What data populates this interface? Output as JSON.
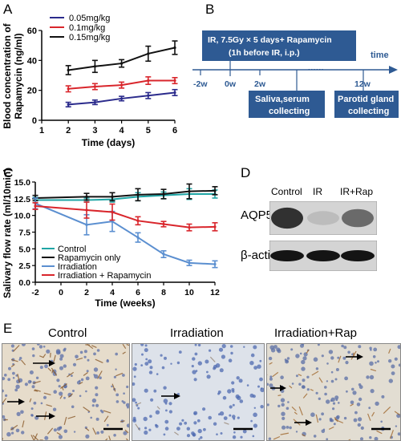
{
  "panels": {
    "A": "A",
    "B": "B",
    "C": "C",
    "D": "D",
    "E": "E"
  },
  "panelA": {
    "chart_data": {
      "type": "line",
      "xlabel": "Time (days)",
      "ylabel_line1": "Blood concentration of",
      "ylabel_line2": "Rapamycin (ng/ml)",
      "xlim": [
        1,
        6
      ],
      "ylim": [
        0,
        60
      ],
      "xticks": [
        "1",
        "2",
        "3",
        "4",
        "5",
        "6"
      ],
      "yticks": [
        "0",
        "20",
        "40",
        "60"
      ],
      "legend_position": "top-left",
      "series": [
        {
          "name": "0.05mg/kg",
          "color": "#2b2b8c",
          "x": [
            2,
            3,
            4,
            5,
            6
          ],
          "values": [
            10.5,
            12,
            14.5,
            16.5,
            18.5
          ],
          "err": [
            1.5,
            1.5,
            1.5,
            2,
            2
          ]
        },
        {
          "name": "0.1mg/kg",
          "color": "#d9262c",
          "x": [
            2,
            3,
            4,
            5,
            6
          ],
          "values": [
            21,
            22.5,
            23.5,
            26.5,
            26.5
          ],
          "err": [
            2,
            2,
            2,
            2.5,
            2
          ]
        },
        {
          "name": "0.15mg/kg",
          "color": "#111111",
          "x": [
            2,
            3,
            4,
            5,
            6
          ],
          "values": [
            33.5,
            36,
            38,
            44.5,
            48.5
          ],
          "err": [
            3,
            4,
            2.5,
            5,
            4.5
          ]
        }
      ]
    }
  },
  "panelB": {
    "top_box_line1": "IR, 7.5Gy × 5 days+ Rapamycin",
    "top_box_line2": "(1h before IR, i.p.)",
    "axis_label": "time",
    "ticks": [
      "-2w",
      "0w",
      "2w",
      "12w"
    ],
    "dots": "······",
    "box_saliva_line1": "Saliva,serum",
    "box_saliva_line2": "collecting",
    "box_parotid_line1": "Parotid gland",
    "box_parotid_line2": "collecting",
    "box_color": "#2e5a93"
  },
  "panelC": {
    "chart_data": {
      "type": "line",
      "xlabel": "Time (weeks)",
      "ylabel": "Salivary flow rate (ml/10min)",
      "xlim": [
        -2,
        12
      ],
      "ylim": [
        0,
        15
      ],
      "xticks": [
        "-2",
        "0",
        "2",
        "4",
        "6",
        "8",
        "10",
        "12"
      ],
      "yticks": [
        "0.0",
        "2.5",
        "5.0",
        "7.5",
        "10.0",
        "12.5",
        "15.0"
      ],
      "legend_position": "bottom-left",
      "series": [
        {
          "name": "Control",
          "color": "#1fa5a5",
          "x": [
            -2,
            2,
            4,
            6,
            8,
            10,
            12
          ],
          "values": [
            12.3,
            12.3,
            12.4,
            12.8,
            13.0,
            13.2,
            13.2
          ],
          "err": [
            0.4,
            0.3,
            0.4,
            0.6,
            0.5,
            0.8,
            0.6
          ]
        },
        {
          "name": "Rapamycin only",
          "color": "#111111",
          "x": [
            -2,
            2,
            4,
            6,
            8,
            10,
            12
          ],
          "values": [
            12.6,
            12.8,
            12.8,
            13.1,
            13.2,
            13.6,
            13.7
          ],
          "err": [
            0.4,
            0.5,
            0.6,
            0.9,
            0.7,
            1.1,
            0.6
          ]
        },
        {
          "name": "Irradiation",
          "color": "#5b8fd0",
          "x": [
            -2,
            2,
            4,
            6,
            8,
            10,
            12
          ],
          "values": [
            11.8,
            8.6,
            9.1,
            6.7,
            4.2,
            2.9,
            2.7
          ],
          "err": [
            0.8,
            1.5,
            1.5,
            0.7,
            0.5,
            0.4,
            0.5
          ]
        },
        {
          "name": "Irradiation + Rapamycin",
          "color": "#d9262c",
          "x": [
            -2,
            2,
            4,
            6,
            8,
            10,
            12
          ],
          "values": [
            11.4,
            10.8,
            10.5,
            9.2,
            8.7,
            8.2,
            8.3
          ],
          "err": [
            0.5,
            1.2,
            1.2,
            0.6,
            0.4,
            0.5,
            0.6
          ]
        }
      ]
    }
  },
  "panelD": {
    "columns": [
      "Control",
      "IR",
      "IR+Rap"
    ],
    "rows": [
      "AQP5",
      "β-actin"
    ],
    "aqp5_intensity": [
      0.85,
      0.12,
      0.55
    ],
    "actin_intensity": [
      0.95,
      0.95,
      0.95
    ]
  },
  "panelE": {
    "titles": [
      "Control",
      "Irradiation",
      "Irradiation+Rap"
    ]
  }
}
